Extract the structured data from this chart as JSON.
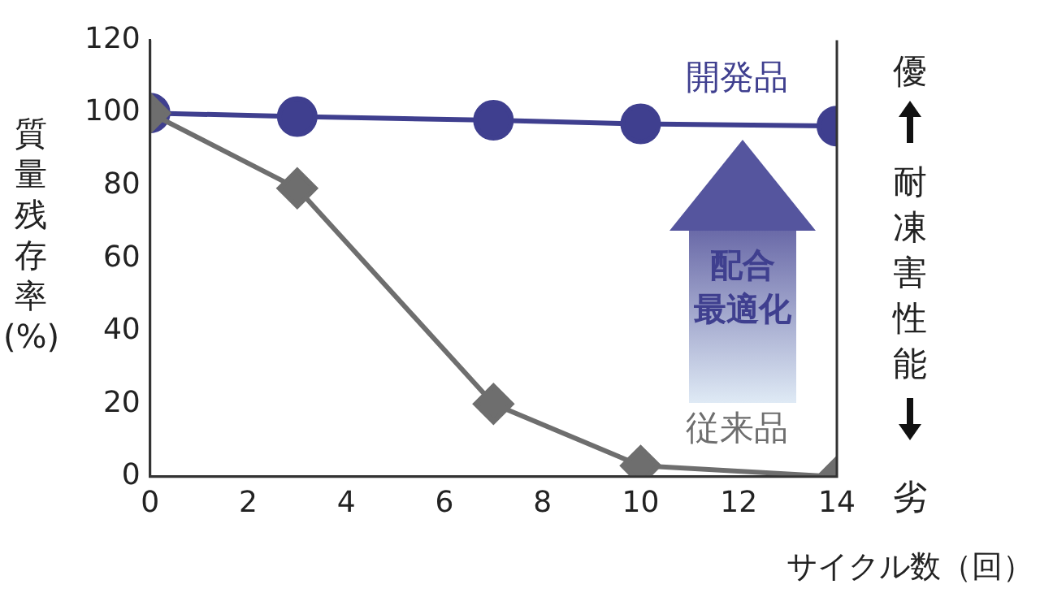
{
  "chart_data": {
    "type": "line",
    "xlabel": "サイクル数（回）",
    "ylabel": "質量残存率(%)",
    "x": [
      0,
      3,
      7,
      10,
      14
    ],
    "series": [
      {
        "name": "開発品",
        "color": "#3f3f8f",
        "values": [
          100,
          99,
          98,
          97,
          96.4
        ],
        "marker": "circle"
      },
      {
        "name": "従来品",
        "color": "#6e6e6e",
        "values": [
          100,
          79.3,
          20,
          3,
          0
        ],
        "marker": "diamond"
      }
    ],
    "xlim": [
      0,
      14
    ],
    "xticks": [
      0,
      2,
      4,
      6,
      8,
      10,
      12,
      14
    ],
    "ylim": [
      0,
      120
    ],
    "yticks": [
      0,
      20,
      40,
      60,
      80,
      100,
      120
    ],
    "annotations": [
      "配合",
      "最適化",
      "優",
      "耐凍害性能",
      "劣"
    ]
  }
}
